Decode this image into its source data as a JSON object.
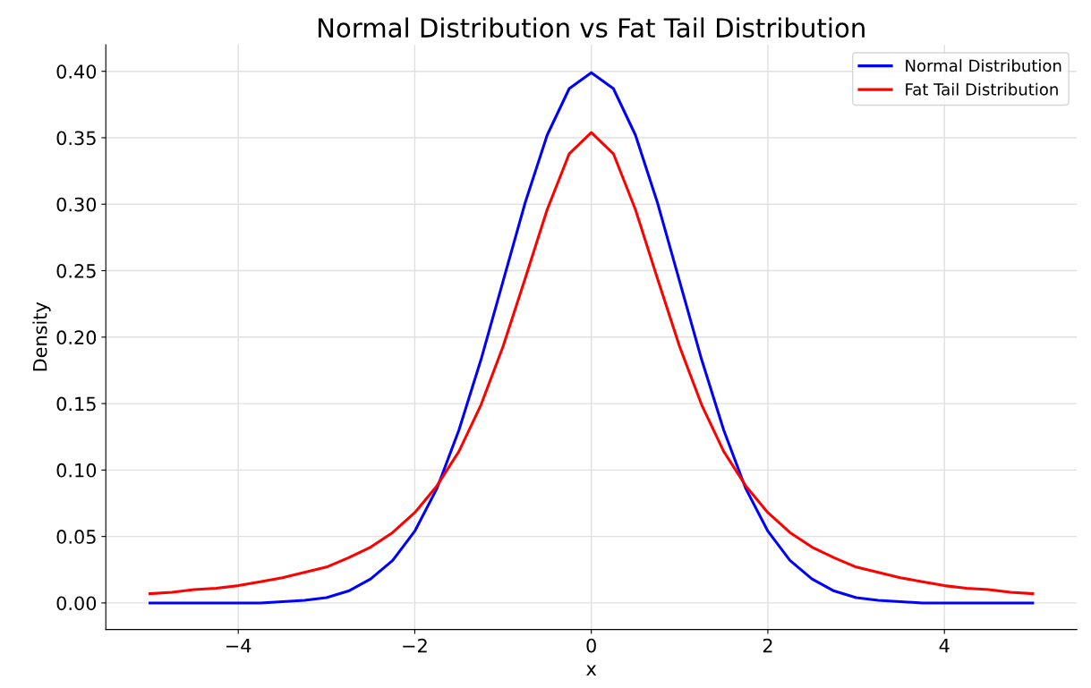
{
  "chart_data": {
    "type": "line",
    "title": "Normal Distribution vs Fat Tail Distribution",
    "xlabel": "x",
    "ylabel": "Density",
    "x": [
      -5,
      -4.75,
      -4.5,
      -4.25,
      -4,
      -3.75,
      -3.5,
      -3.25,
      -3,
      -2.75,
      -2.5,
      -2.25,
      -2,
      -1.75,
      -1.5,
      -1.25,
      -1,
      -0.75,
      -0.5,
      -0.25,
      0,
      0.25,
      0.5,
      0.75,
      1,
      1.25,
      1.5,
      1.75,
      2,
      2.25,
      2.5,
      2.75,
      3,
      3.25,
      3.5,
      3.75,
      4,
      4.25,
      4.5,
      4.75,
      5
    ],
    "series": [
      {
        "name": "Normal Distribution",
        "color": "#0000ff",
        "values": [
          0.0,
          0.0,
          0.0,
          0.0,
          0.0,
          0.0,
          0.001,
          0.002,
          0.004,
          0.009,
          0.018,
          0.032,
          0.054,
          0.086,
          0.13,
          0.183,
          0.242,
          0.301,
          0.352,
          0.387,
          0.399,
          0.387,
          0.352,
          0.301,
          0.242,
          0.183,
          0.13,
          0.086,
          0.054,
          0.032,
          0.018,
          0.009,
          0.004,
          0.002,
          0.001,
          0.0,
          0.0,
          0.0,
          0.0,
          0.0,
          0.0
        ]
      },
      {
        "name": "Fat Tail Distribution",
        "color": "#ff0000",
        "values": [
          0.007,
          0.008,
          0.01,
          0.011,
          0.013,
          0.016,
          0.019,
          0.023,
          0.027,
          0.034,
          0.042,
          0.053,
          0.068,
          0.088,
          0.114,
          0.149,
          0.193,
          0.244,
          0.296,
          0.338,
          0.354,
          0.338,
          0.296,
          0.244,
          0.193,
          0.149,
          0.114,
          0.088,
          0.068,
          0.053,
          0.042,
          0.034,
          0.027,
          0.023,
          0.019,
          0.016,
          0.013,
          0.011,
          0.01,
          0.008,
          0.007
        ]
      }
    ],
    "xlim": [
      -5.5,
      5.5
    ],
    "ylim": [
      -0.02,
      0.42
    ],
    "xticks": [
      {
        "value": -4,
        "label": "−4"
      },
      {
        "value": -2,
        "label": "−2"
      },
      0,
      2,
      4
    ],
    "yticks": [
      {
        "value": 0,
        "label": "0.00"
      },
      {
        "value": 0.05,
        "label": "0.05"
      },
      {
        "value": 0.1,
        "label": "0.10"
      },
      {
        "value": 0.15,
        "label": "0.15"
      },
      {
        "value": 0.2,
        "label": "0.20"
      },
      {
        "value": 0.25,
        "label": "0.25"
      },
      {
        "value": 0.3,
        "label": "0.30"
      },
      {
        "value": 0.35,
        "label": "0.35"
      },
      {
        "value": 0.4,
        "label": "0.40"
      }
    ],
    "grid": true,
    "legend": "top right",
    "line_style": "solid"
  }
}
